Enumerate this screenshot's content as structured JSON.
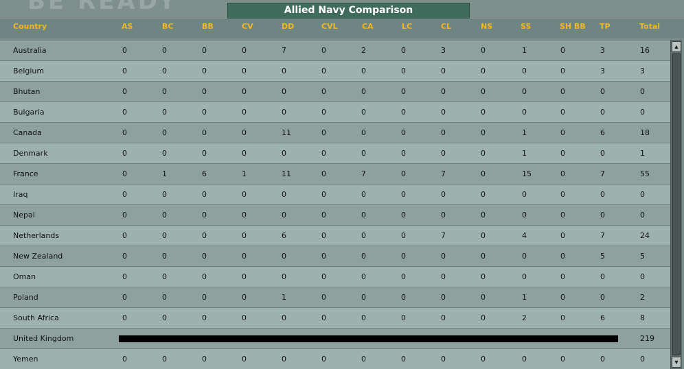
{
  "window": {
    "title": "Allied Navy Comparison",
    "background_text": "BE READY"
  },
  "columns": [
    "Country",
    "AS",
    "BC",
    "BB",
    "CV",
    "DD",
    "CVL",
    "CA",
    "LC",
    "CL",
    "NS",
    "SS",
    "SH BB",
    "TP",
    "Total"
  ],
  "rows": [
    {
      "country": "Australia",
      "values": [
        "0",
        "0",
        "0",
        "0",
        "7",
        "0",
        "2",
        "0",
        "3",
        "0",
        "1",
        "0",
        "3",
        "16"
      ]
    },
    {
      "country": "Belgium",
      "values": [
        "0",
        "0",
        "0",
        "0",
        "0",
        "0",
        "0",
        "0",
        "0",
        "0",
        "0",
        "0",
        "3",
        "3"
      ]
    },
    {
      "country": "Bhutan",
      "values": [
        "0",
        "0",
        "0",
        "0",
        "0",
        "0",
        "0",
        "0",
        "0",
        "0",
        "0",
        "0",
        "0",
        "0"
      ]
    },
    {
      "country": "Bulgaria",
      "values": [
        "0",
        "0",
        "0",
        "0",
        "0",
        "0",
        "0",
        "0",
        "0",
        "0",
        "0",
        "0",
        "0",
        "0"
      ]
    },
    {
      "country": "Canada",
      "values": [
        "0",
        "0",
        "0",
        "0",
        "11",
        "0",
        "0",
        "0",
        "0",
        "0",
        "1",
        "0",
        "6",
        "18"
      ]
    },
    {
      "country": "Denmark",
      "values": [
        "0",
        "0",
        "0",
        "0",
        "0",
        "0",
        "0",
        "0",
        "0",
        "0",
        "1",
        "0",
        "0",
        "1"
      ]
    },
    {
      "country": "France",
      "values": [
        "0",
        "1",
        "6",
        "1",
        "11",
        "0",
        "7",
        "0",
        "7",
        "0",
        "15",
        "0",
        "7",
        "55"
      ]
    },
    {
      "country": "Iraq",
      "values": [
        "0",
        "0",
        "0",
        "0",
        "0",
        "0",
        "0",
        "0",
        "0",
        "0",
        "0",
        "0",
        "0",
        "0"
      ]
    },
    {
      "country": "Nepal",
      "values": [
        "0",
        "0",
        "0",
        "0",
        "0",
        "0",
        "0",
        "0",
        "0",
        "0",
        "0",
        "0",
        "0",
        "0"
      ]
    },
    {
      "country": "Netherlands",
      "values": [
        "0",
        "0",
        "0",
        "0",
        "6",
        "0",
        "0",
        "0",
        "7",
        "0",
        "4",
        "0",
        "7",
        "24"
      ]
    },
    {
      "country": "New Zealand",
      "values": [
        "0",
        "0",
        "0",
        "0",
        "0",
        "0",
        "0",
        "0",
        "0",
        "0",
        "0",
        "0",
        "5",
        "5"
      ]
    },
    {
      "country": "Oman",
      "values": [
        "0",
        "0",
        "0",
        "0",
        "0",
        "0",
        "0",
        "0",
        "0",
        "0",
        "0",
        "0",
        "0",
        "0"
      ]
    },
    {
      "country": "Poland",
      "values": [
        "0",
        "0",
        "0",
        "0",
        "1",
        "0",
        "0",
        "0",
        "0",
        "0",
        "1",
        "0",
        "0",
        "2"
      ]
    },
    {
      "country": "South Africa",
      "values": [
        "0",
        "0",
        "0",
        "0",
        "0",
        "0",
        "0",
        "0",
        "0",
        "0",
        "2",
        "0",
        "6",
        "8"
      ]
    },
    {
      "country": "United Kingdom",
      "values": null,
      "total": "219"
    },
    {
      "country": "Yemen",
      "values": [
        "0",
        "0",
        "0",
        "0",
        "0",
        "0",
        "0",
        "0",
        "0",
        "0",
        "0",
        "0",
        "0",
        "0"
      ]
    }
  ],
  "colors": {
    "header_text": "#f0b820",
    "title_bg": "#3f6c5c"
  }
}
